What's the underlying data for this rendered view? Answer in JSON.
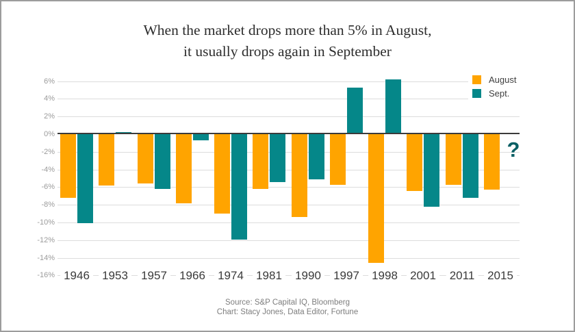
{
  "title": {
    "line1": "When the market drops more than 5% in August,",
    "line2": "it usually drops again in September"
  },
  "footer": {
    "line1": "Source: S&P Capital IQ, Bloomberg",
    "line2": "Chart: Stacy Jones, Data Editor, Fortune"
  },
  "colors": {
    "august": "#FFA400",
    "september": "#058789",
    "question_mark": "#0B6065",
    "gridline": "#DCDCDC",
    "zero_line": "#3A3A3A"
  },
  "chart_data": {
    "type": "bar",
    "categories": [
      "1946",
      "1953",
      "1957",
      "1966",
      "1974",
      "1981",
      "1990",
      "1997",
      "1998",
      "2001",
      "2011",
      "2015"
    ],
    "series": [
      {
        "name": "August",
        "color": "#FFA400",
        "values": [
          -7.2,
          -5.8,
          -5.6,
          -7.8,
          -9.0,
          -6.2,
          -9.4,
          -5.7,
          -14.6,
          -6.4,
          -5.7,
          -6.3
        ]
      },
      {
        "name": "Sept.",
        "color": "#058789",
        "values": [
          -10.1,
          0.2,
          -6.2,
          -0.7,
          -11.9,
          -5.4,
          -5.1,
          5.3,
          6.2,
          -8.2,
          -7.2,
          null
        ]
      }
    ],
    "title": "When the market drops more than 5% in August, it usually drops again in September",
    "xlabel": "",
    "ylabel": "",
    "ylim": [
      -16,
      6
    ],
    "ytick_step": 2,
    "ytick_labels": [
      "6%",
      "4%",
      "2%",
      "0%",
      "-2%",
      "-4%",
      "-6%",
      "-8%",
      "-10%",
      "-12%",
      "-14%",
      "-16%"
    ],
    "grid": true,
    "legend_position": "top-right",
    "annotation": {
      "text": "?",
      "color": "#0B6065"
    }
  }
}
